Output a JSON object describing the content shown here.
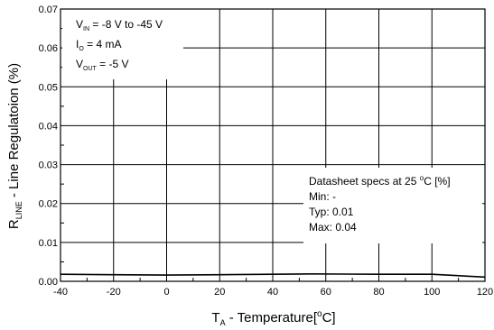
{
  "chart_data": {
    "type": "line",
    "title": "",
    "xlabel": {
      "main": "T",
      "sub": "A",
      "rest": " - Temperature[",
      "sup": "o",
      "end": "C]"
    },
    "ylabel": {
      "main": "R",
      "sub": "LINE",
      "rest": " - Line Regulatoion (%)"
    },
    "xlim": [
      -40,
      120
    ],
    "ylim": [
      0,
      0.07
    ],
    "x_ticks": [
      -40,
      -20,
      0,
      20,
      40,
      60,
      80,
      100,
      120
    ],
    "x_tick_labels": [
      "-40",
      "-20",
      "0",
      "20",
      "40",
      "60",
      "80",
      "100",
      "120"
    ],
    "y_ticks": [
      0,
      0.01,
      0.02,
      0.03,
      0.04,
      0.05,
      0.06,
      0.07
    ],
    "y_tick_labels": [
      "0.00",
      "0.01",
      "0.02",
      "0.03",
      "0.04",
      "0.05",
      "0.06",
      "0.07"
    ],
    "grid": true,
    "series": [
      {
        "x": [
          -40,
          -20,
          0,
          20,
          40,
          55,
          80,
          100,
          120
        ],
        "y": [
          0.0018,
          0.0017,
          0.0016,
          0.0017,
          0.0018,
          0.0019,
          0.0018,
          0.0018,
          0.0011
        ]
      }
    ],
    "conditions_box": [
      {
        "main": "V",
        "sub": "IN",
        "rest": " = -8 V to -45 V"
      },
      {
        "main": "I",
        "sub": "O",
        "rest": " = 4 mA"
      },
      {
        "main": "V",
        "sub": "OUT",
        "rest": " = -5 V"
      }
    ],
    "specs_box": {
      "title": "Datasheet specs at 25 ",
      "title_sup": "o",
      "title_end": "C [%]",
      "lines": [
        "Min: -",
        "Typ: 0.01",
        "Max: 0.04"
      ]
    }
  }
}
